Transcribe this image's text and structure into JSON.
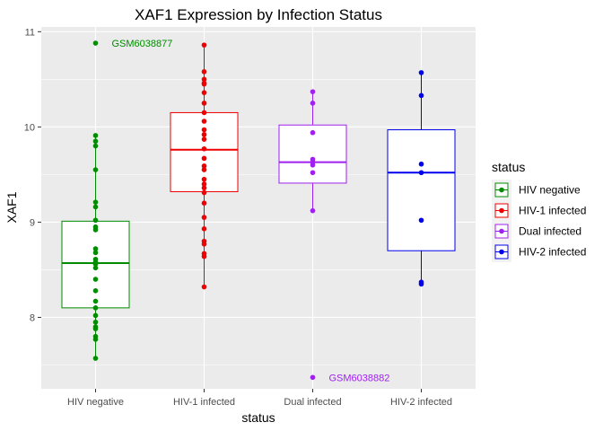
{
  "chart_data": {
    "type": "box",
    "title": "XAF1 Expression by Infection Status",
    "xlabel": "status",
    "ylabel": "XAF1",
    "ylim": [
      7.25,
      11.05
    ],
    "yticks": [
      8,
      9,
      10,
      11
    ],
    "grid": true,
    "legend": {
      "title": "status",
      "placement": "right"
    },
    "categories": [
      "HIV negative",
      "HIV-1 infected",
      "Dual infected",
      "HIV-2 infected"
    ],
    "colors": [
      "#008B00",
      "#EE0000",
      "#A020F0",
      "#0000EE"
    ],
    "boxes": [
      {
        "q1": 8.1,
        "median": 8.57,
        "q3": 9.01,
        "whisker_low": 7.57,
        "whisker_high": 9.91
      },
      {
        "q1": 9.32,
        "median": 9.76,
        "q3": 10.15,
        "whisker_low": 8.32,
        "whisker_high": 10.86
      },
      {
        "q1": 9.41,
        "median": 9.63,
        "q3": 10.02,
        "whisker_low": 9.12,
        "whisker_high": 10.37
      },
      {
        "q1": 8.7,
        "median": 9.52,
        "q3": 9.97,
        "whisker_low": 8.35,
        "whisker_high": 10.57
      }
    ],
    "points": [
      [
        10.88,
        9.91,
        9.85,
        9.8,
        9.55,
        9.21,
        9.16,
        9.02,
        8.95,
        8.92,
        8.72,
        8.68,
        8.61,
        8.58,
        8.56,
        8.52,
        8.4,
        8.28,
        8.17,
        8.1,
        8.02,
        7.95,
        7.9,
        7.88,
        7.8,
        7.77,
        7.57
      ],
      [
        10.86,
        10.58,
        10.5,
        10.46,
        10.45,
        10.36,
        10.25,
        10.15,
        10.06,
        9.97,
        9.92,
        9.87,
        9.77,
        9.67,
        9.59,
        9.55,
        9.45,
        9.4,
        9.36,
        9.31,
        9.2,
        9.05,
        8.93,
        8.8,
        8.77,
        8.67,
        8.64,
        8.32
      ],
      [
        10.37,
        10.25,
        9.94,
        9.66,
        9.63,
        9.6,
        9.52,
        9.12,
        7.37
      ],
      [
        10.57,
        10.33,
        9.61,
        9.52,
        9.02,
        8.37,
        8.35
      ]
    ],
    "annotations": [
      {
        "text": "GSM6038877",
        "group": 0,
        "y": 10.88
      },
      {
        "text": "GSM6038882",
        "group": 2,
        "y": 7.37
      }
    ]
  }
}
